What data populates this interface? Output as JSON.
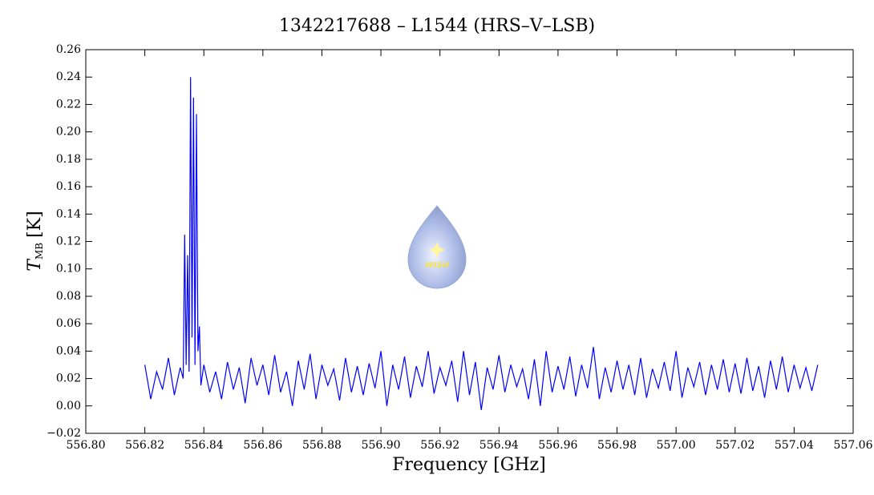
{
  "chart_data": {
    "type": "line",
    "title": "1342217688 – L1544 (HRS–V–LSB)",
    "x_label": "Frequency [GHz]",
    "y_label": {
      "main": "T",
      "sub": "MB",
      "unit": "[K]"
    },
    "watermark": "WISH",
    "color": "#0000ff",
    "xlim": [
      556.8,
      557.06
    ],
    "ylim": [
      -0.02,
      0.26
    ],
    "xticks": [
      {
        "value": 556.8,
        "label": "556.80"
      },
      {
        "value": 556.82,
        "label": "556.82"
      },
      {
        "value": 556.84,
        "label": "556.84"
      },
      {
        "value": 556.86,
        "label": "556.86"
      },
      {
        "value": 556.88,
        "label": "556.88"
      },
      {
        "value": 556.9,
        "label": "556.90"
      },
      {
        "value": 556.92,
        "label": "556.92"
      },
      {
        "value": 556.94,
        "label": "556.94"
      },
      {
        "value": 556.96,
        "label": "556.96"
      },
      {
        "value": 556.98,
        "label": "556.98"
      },
      {
        "value": 557.0,
        "label": "557.00"
      },
      {
        "value": 557.02,
        "label": "557.02"
      },
      {
        "value": 557.04,
        "label": "557.04"
      },
      {
        "value": 557.06,
        "label": "557.06"
      }
    ],
    "yticks": [
      {
        "value": -0.02,
        "label": "−0.02"
      },
      {
        "value": 0,
        "label": "0.00"
      },
      0.02,
      0.04,
      0.06,
      0.08,
      {
        "value": 0.1,
        "label": "0.10"
      },
      0.12,
      0.14,
      0.16,
      0.18,
      {
        "value": 0.2,
        "label": "0.20"
      },
      0.22,
      0.24,
      0.26
    ],
    "x": [
      556.82,
      556.822,
      556.824,
      556.826,
      556.828,
      556.83,
      556.832,
      556.833,
      556.8335,
      556.834,
      556.8345,
      556.835,
      556.8355,
      556.836,
      556.8365,
      556.837,
      556.8375,
      556.838,
      556.8385,
      556.839,
      556.84,
      556.842,
      556.844,
      556.846,
      556.848,
      556.85,
      556.852,
      556.854,
      556.856,
      556.858,
      556.86,
      556.862,
      556.864,
      556.866,
      556.868,
      556.87,
      556.872,
      556.874,
      556.876,
      556.878,
      556.88,
      556.882,
      556.884,
      556.886,
      556.888,
      556.89,
      556.892,
      556.894,
      556.896,
      556.898,
      556.9,
      556.902,
      556.904,
      556.906,
      556.908,
      556.91,
      556.912,
      556.914,
      556.916,
      556.918,
      556.92,
      556.922,
      556.924,
      556.926,
      556.928,
      556.93,
      556.932,
      556.934,
      556.936,
      556.938,
      556.94,
      556.942,
      556.944,
      556.946,
      556.948,
      556.95,
      556.952,
      556.954,
      556.956,
      556.958,
      556.96,
      556.962,
      556.964,
      556.966,
      556.968,
      556.97,
      556.972,
      556.974,
      556.976,
      556.978,
      556.98,
      556.982,
      556.984,
      556.986,
      556.988,
      556.99,
      556.992,
      556.994,
      556.996,
      556.998,
      557.0,
      557.002,
      557.004,
      557.006,
      557.008,
      557.01,
      557.012,
      557.014,
      557.016,
      557.018,
      557.02,
      557.022,
      557.024,
      557.026,
      557.028,
      557.03,
      557.032,
      557.034,
      557.036,
      557.038,
      557.04,
      557.042,
      557.044,
      557.046,
      557.048
    ],
    "values": [
      0.03,
      0.005,
      0.025,
      0.012,
      0.035,
      0.008,
      0.028,
      0.02,
      0.125,
      0.03,
      0.11,
      0.025,
      0.24,
      0.05,
      0.225,
      0.03,
      0.213,
      0.04,
      0.058,
      0.015,
      0.03,
      0.01,
      0.025,
      0.005,
      0.032,
      0.012,
      0.028,
      0.002,
      0.035,
      0.015,
      0.03,
      0.008,
      0.037,
      0.01,
      0.025,
      0.0,
      0.033,
      0.012,
      0.038,
      0.005,
      0.03,
      0.015,
      0.027,
      0.004,
      0.035,
      0.01,
      0.029,
      0.008,
      0.031,
      0.013,
      0.04,
      0.0,
      0.03,
      0.012,
      0.036,
      0.006,
      0.029,
      0.014,
      0.04,
      0.009,
      0.028,
      0.015,
      0.033,
      0.003,
      0.04,
      0.008,
      0.032,
      -0.003,
      0.028,
      0.012,
      0.037,
      0.01,
      0.03,
      0.014,
      0.027,
      0.005,
      0.034,
      0.0,
      0.04,
      0.01,
      0.029,
      0.012,
      0.036,
      0.007,
      0.03,
      0.013,
      0.043,
      0.005,
      0.028,
      0.01,
      0.033,
      0.012,
      0.03,
      0.008,
      0.035,
      0.006,
      0.027,
      0.013,
      0.032,
      0.011,
      0.04,
      0.006,
      0.028,
      0.014,
      0.032,
      0.008,
      0.03,
      0.012,
      0.034,
      0.01,
      0.031,
      0.009,
      0.035,
      0.011,
      0.029,
      0.006,
      0.033,
      0.012,
      0.036,
      0.01,
      0.03,
      0.013,
      0.028,
      0.011,
      0.03
    ]
  }
}
